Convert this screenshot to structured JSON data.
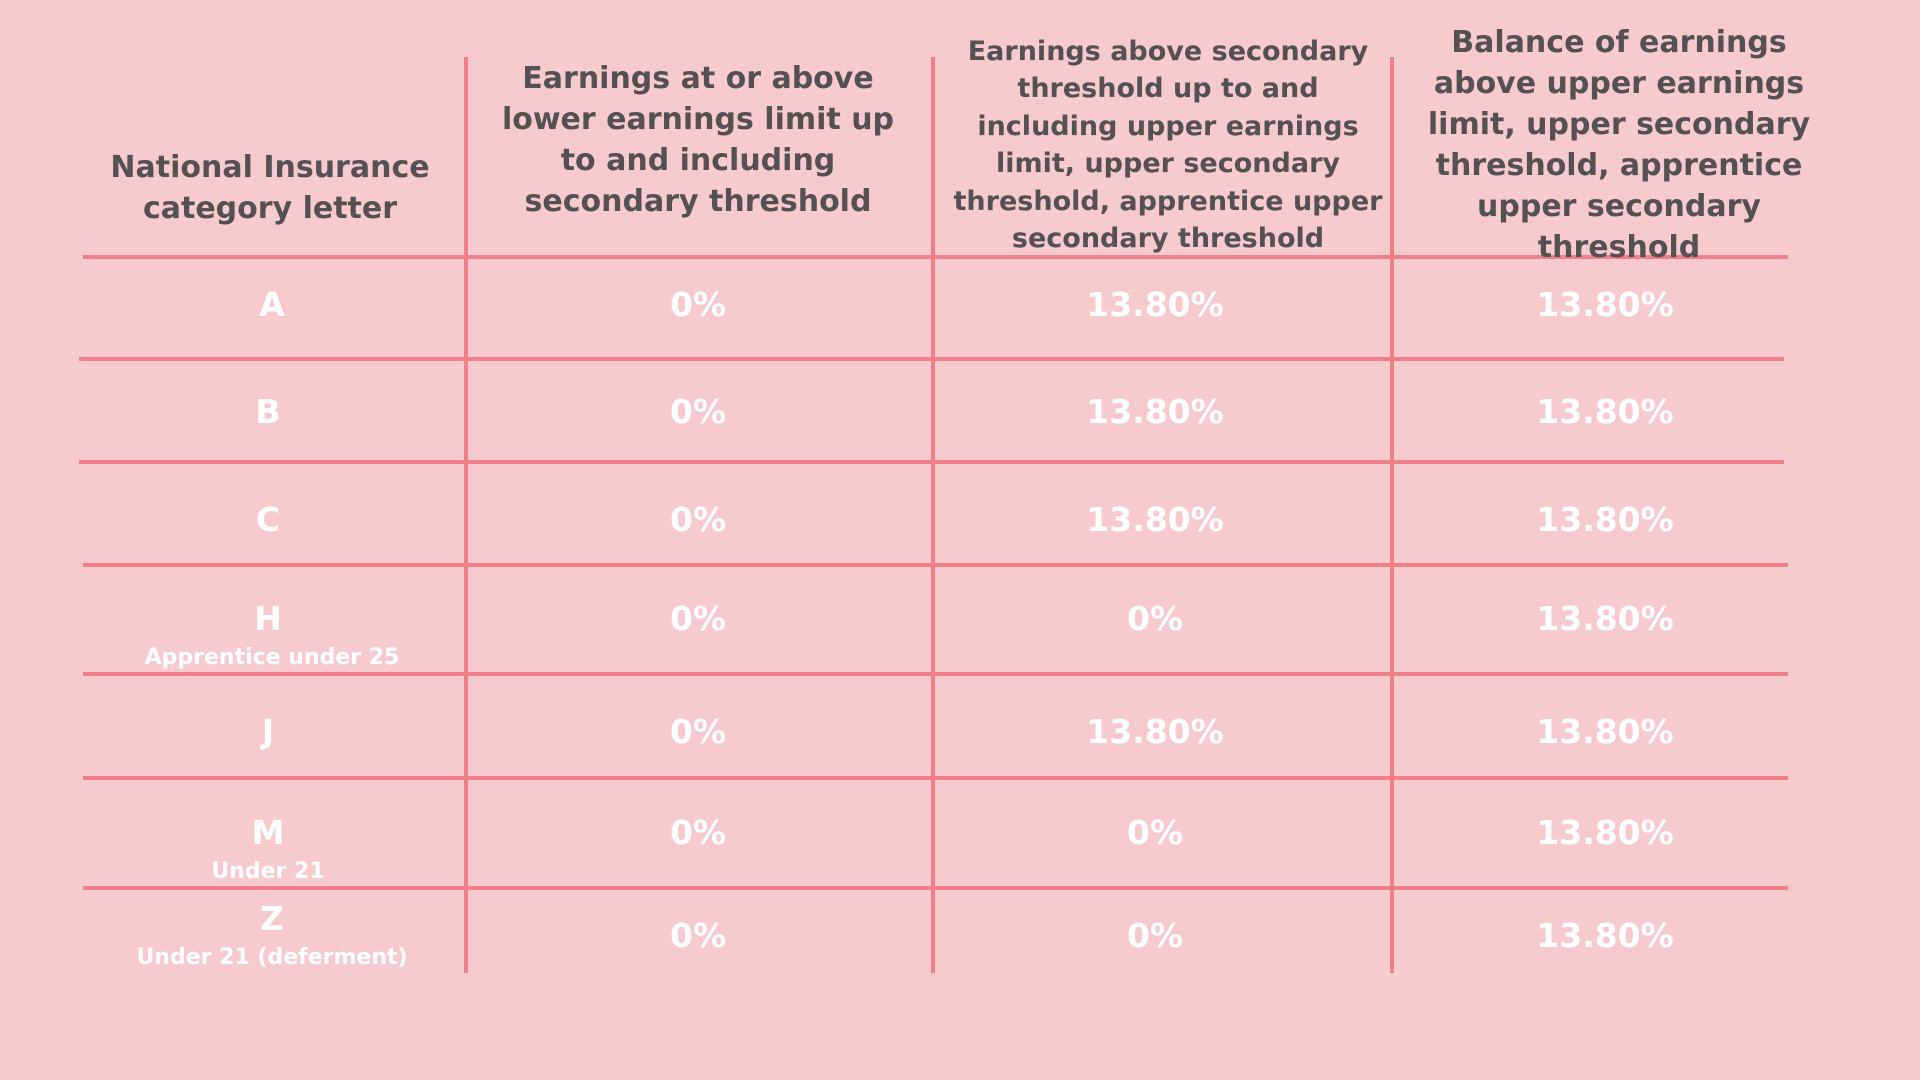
{
  "colors": {
    "background": "#f7cbce",
    "grid_line": "#f07f89",
    "header_text": "#555051",
    "cell_text": "#ffffff"
  },
  "table": {
    "headers": [
      "National Insurance category letter",
      "Earnings at or above lower earnings limit up to and including secondary threshold",
      "Earnings above secondary threshold up to and including upper earnings limit, upper secondary threshold, apprentice upper secondary threshold",
      "Balance of earnings above upper earnings limit, upper secondary threshold, apprentice upper secondary threshold"
    ],
    "rows": [
      {
        "letter": "A",
        "note": "",
        "values": [
          "0%",
          "13.80%",
          "13.80%"
        ]
      },
      {
        "letter": "B",
        "note": "",
        "values": [
          "0%",
          "13.80%",
          "13.80%"
        ]
      },
      {
        "letter": "C",
        "note": "",
        "values": [
          "0%",
          "13.80%",
          "13.80%"
        ]
      },
      {
        "letter": "H",
        "note": "Apprentice under 25",
        "values": [
          "0%",
          "0%",
          "13.80%"
        ]
      },
      {
        "letter": "J",
        "note": "",
        "values": [
          "0%",
          "13.80%",
          "13.80%"
        ]
      },
      {
        "letter": "M",
        "note": "Under 21",
        "values": [
          "0%",
          "0%",
          "13.80%"
        ]
      },
      {
        "letter": "Z",
        "note": "Under 21 (deferment)",
        "values": [
          "0%",
          "0%",
          "13.80%"
        ]
      }
    ]
  }
}
